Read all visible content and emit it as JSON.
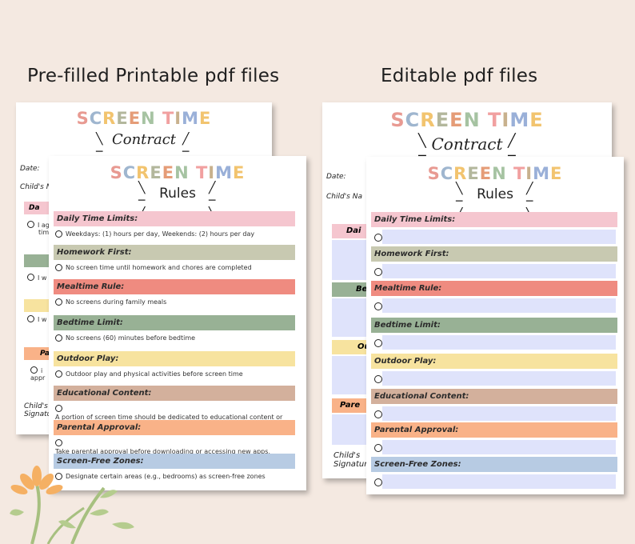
{
  "captions": {
    "left": "Pre-filled Printable pdf files",
    "right": "Editable pdf files"
  },
  "contract": {
    "title": "SCREEN TIME",
    "subtitle": "Contract",
    "date_label": "Date:",
    "child_name_label_left": "Child's N",
    "child_name_label_right": "Child's Na",
    "signature_label_1": "Child's",
    "signature_label_2": "Signatur",
    "band_texts": [
      "Dai",
      "Bed",
      "Ou",
      "Pare"
    ],
    "left_fragments": [
      "Da",
      "Pa",
      "I ag",
      "tim",
      "I w",
      "I w",
      "i",
      "appr"
    ]
  },
  "rules": {
    "title": "SCREEN TIME",
    "subtitle": "Rules",
    "sections": [
      {
        "heading": "Daily Time Limits:",
        "text": "Weekdays: (1) hours per day, Weekends: (2) hours per day",
        "color": "#f5c6cf"
      },
      {
        "heading": "Homework First:",
        "text": "No screen time until homework and chores are completed",
        "color": "#c8c9b1"
      },
      {
        "heading": "Mealtime Rule:",
        "text": "No screens during family meals",
        "color": "#ef8b80"
      },
      {
        "heading": "Bedtime Limit:",
        "text": "No screens (60) minutes before bedtime",
        "color": "#98b195"
      },
      {
        "heading": "Outdoor Play:",
        "text": "Outdoor play and physical activities before screen time",
        "color": "#f7e39f"
      },
      {
        "heading": "Educational Content:",
        "text": "A portion of screen time should be dedicated to educational content or activities",
        "color": "#d3b09c"
      },
      {
        "heading": "Parental Approval:",
        "text": "Take parental approval before downloading or accessing new apps, games, or websites.",
        "color": "#f9b288"
      },
      {
        "heading": "Screen-Free Zones:",
        "text": "Designate certain areas (e.g., bedrooms) as screen-free zones",
        "color": "#b7cbe3"
      }
    ]
  },
  "colors": {
    "title_letters": [
      "#e89a92",
      "#9fb6cf",
      "#f2c46f",
      "#b3b79c",
      "#e59c77",
      "#a6c3a2",
      "#f1a0a0",
      "#c8b18d",
      "#9ab0d8",
      "#f2c46f"
    ]
  }
}
